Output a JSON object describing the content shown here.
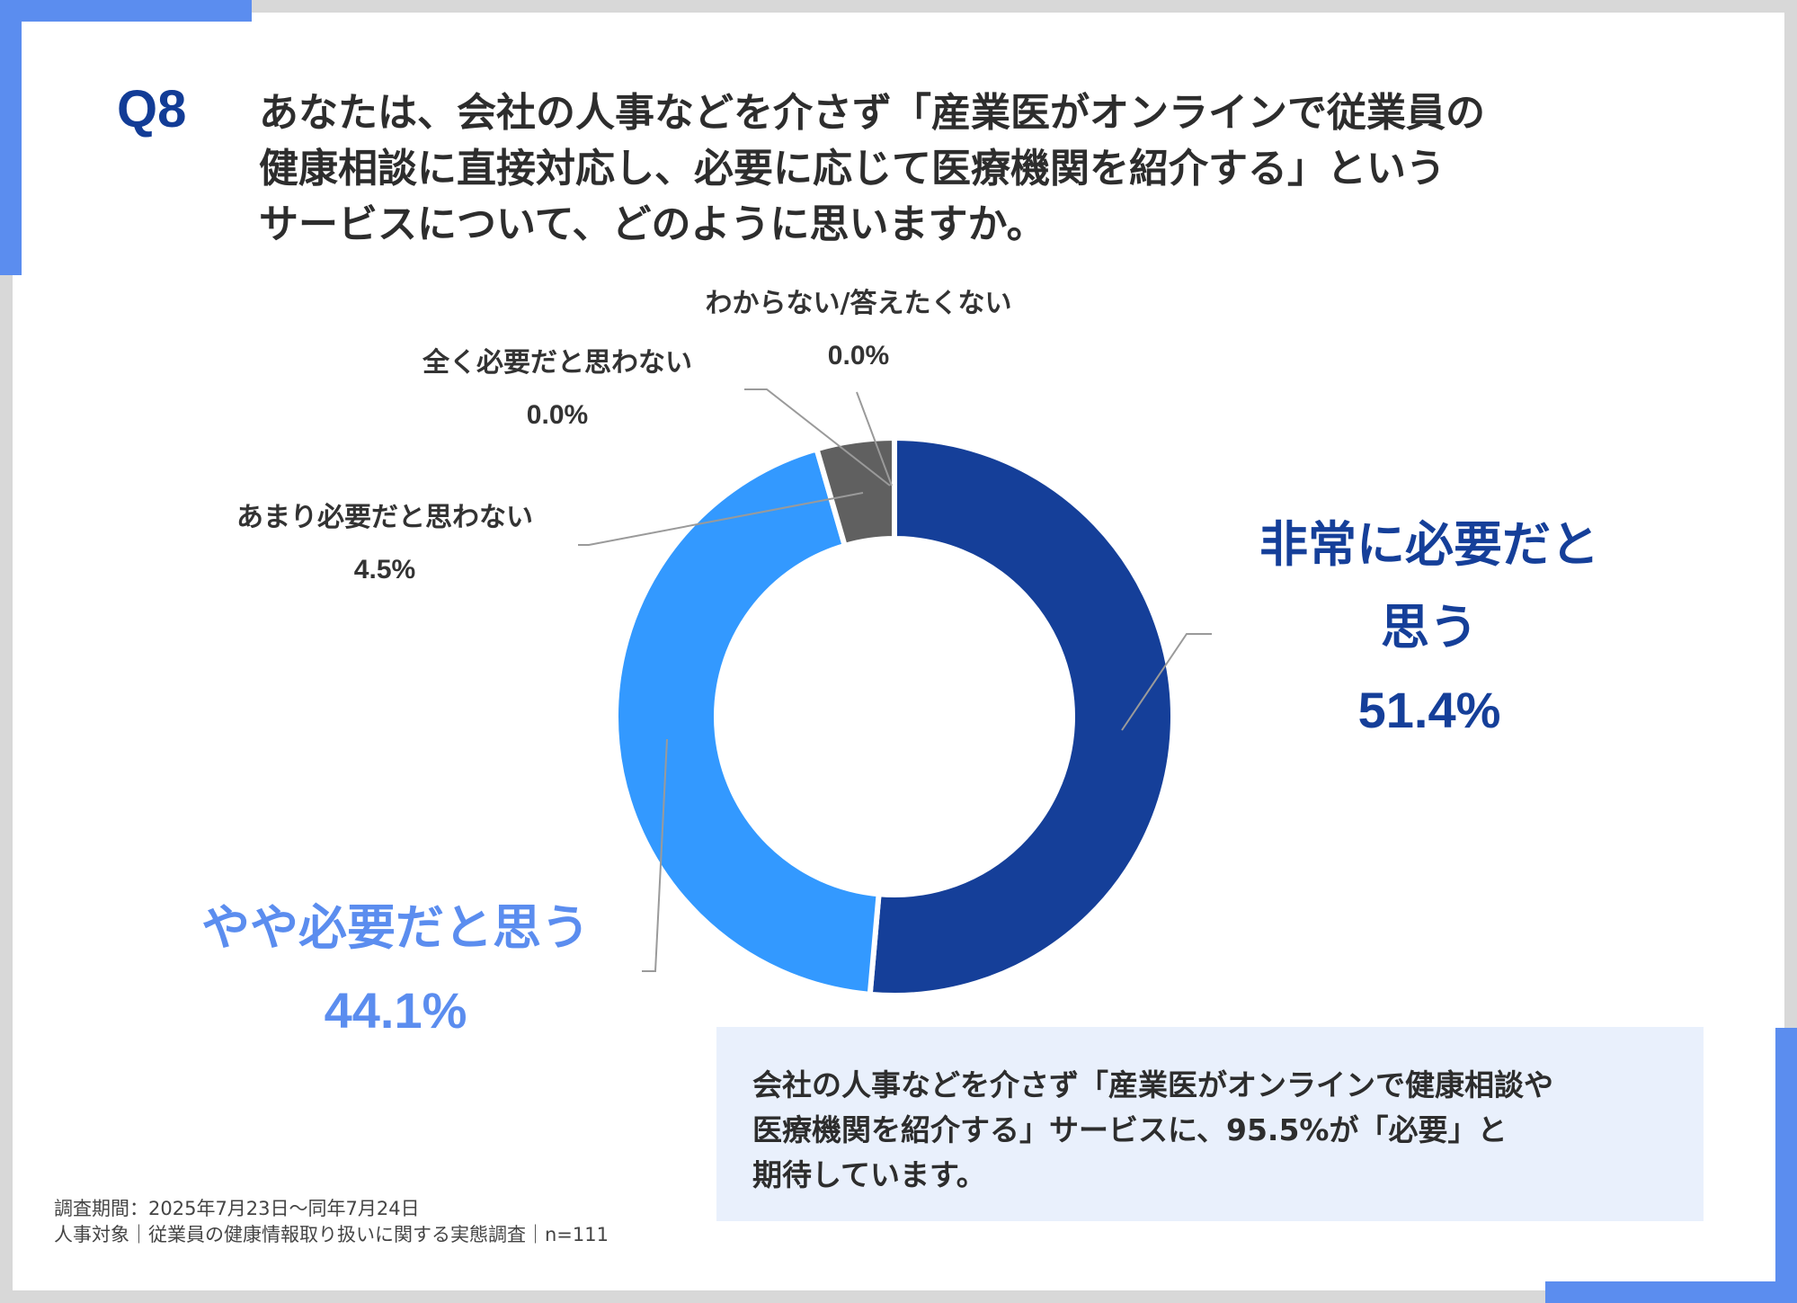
{
  "question": {
    "number": "Q8",
    "lines": [
      "あなたは、会社の人事などを介さず「産業医がオンラインで従業員の",
      "健康相談に直接対応し、必要に応じて医療機関を紹介する」という",
      "サービスについて、どのように思いますか。"
    ]
  },
  "chart_data": {
    "type": "pie",
    "title": "",
    "categories": [
      "非常に必要だと思う",
      "やや必要だと思う",
      "あまり必要だと思わない",
      "全く必要だと思わない",
      "わからない/答えたくない"
    ],
    "values": [
      51.4,
      44.1,
      4.5,
      0.0,
      0.0
    ],
    "value_labels": [
      "51.4%",
      "44.1%",
      "4.5%",
      "0.0%",
      "0.0%"
    ],
    "colors": [
      "#153f99",
      "#3399ff",
      "#606060",
      "#9a9a9a",
      "#bdbdbd"
    ],
    "label_lines": [
      [
        "非常に必要だと",
        "思う"
      ],
      [
        "やや必要だと思う"
      ],
      [
        "あまり必要だと思わない"
      ],
      [
        "全く必要だと思わない"
      ],
      [
        "わからない/答えたくない"
      ]
    ],
    "donut": true
  },
  "summary": {
    "lines": [
      "会社の人事などを介さず「産業医がオンラインで健康相談や",
      "医療機関を紹介する」サービスに、95.5%が「必要」と",
      "期待しています。"
    ]
  },
  "footer": {
    "period": "調査期間：2025年7月23日〜同年7月24日",
    "survey": "人事対象｜従業員の健康情報取り扱いに関する実態調査｜n=111"
  }
}
